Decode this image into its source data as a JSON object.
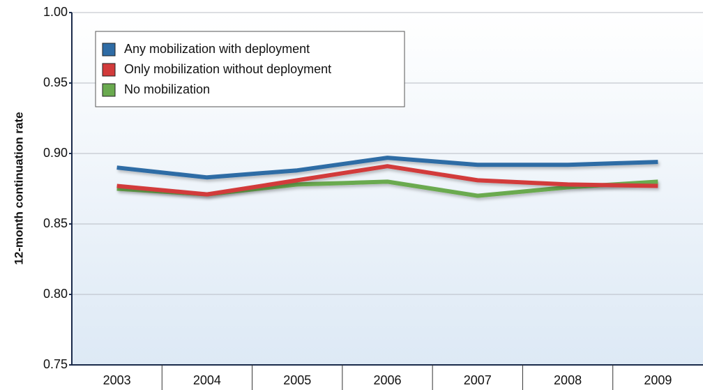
{
  "chart_data": {
    "type": "line",
    "y_label": "12-month continuation rate",
    "categories": [
      "2003",
      "2004",
      "2005",
      "2006",
      "2007",
      "2008",
      "2009"
    ],
    "series": [
      {
        "name": "Any mobilization with deployment",
        "color": "#2f6ca5",
        "values": [
          0.89,
          0.883,
          0.888,
          0.897,
          0.892,
          0.892,
          0.894
        ]
      },
      {
        "name": "Only mobilization without deployment",
        "color": "#d23b3b",
        "values": [
          0.877,
          0.871,
          0.881,
          0.891,
          0.881,
          0.878,
          0.877
        ]
      },
      {
        "name": "No mobilization",
        "color": "#6aaa4f",
        "values": [
          0.875,
          0.871,
          0.878,
          0.88,
          0.87,
          0.876,
          0.88
        ]
      }
    ],
    "ylim": [
      0.75,
      1.0
    ],
    "yticks": [
      0.75,
      {
        "value": 0.8,
        "label": "0.80"
      },
      0.85,
      {
        "value": 0.9,
        "label": "0.90"
      },
      0.95,
      {
        "value": 1.0,
        "label": "1.00"
      }
    ],
    "grid": true,
    "legend": "top-left"
  }
}
